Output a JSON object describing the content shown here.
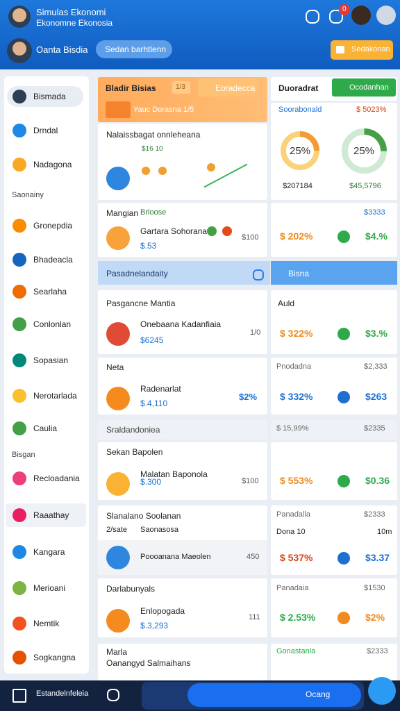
{
  "header": {
    "title": "Simulas Ekonomi",
    "subtitle": "Ekonomne Ekonosia",
    "badge": "0",
    "user": "Oanta Bisdia",
    "search": "Sedan barhtlenn",
    "action": "Sedakonan"
  },
  "sidebar": [
    "Bismada",
    "Drndal",
    "Nadagona",
    "Saonainy",
    "Gronepdia",
    "Bhadeacla",
    "Searlaha",
    "Conlonlan",
    "Sopasian",
    "Nerotarlada",
    "Caulia",
    "Bisgan",
    "Recloadania",
    "Raaathay",
    "Kangara",
    "Merioani",
    "Nemtik",
    "Sogkangna"
  ],
  "left": [
    {
      "title": "Bladir Bisias",
      "badge": "1/3",
      "button": "Eoradecca",
      "sub": "Yauc Dorasna 1/5"
    },
    {
      "title": "Nalaissbagat onnleheana",
      "sub": "$16 10"
    },
    {
      "title": "Mangian",
      "tag": "Brloose",
      "name": "Gartara Sohorana",
      "amount": "$.53",
      "value": "$100"
    },
    {
      "title": "Pasadnelandaity"
    },
    {
      "title": "Pasgancne Mantia",
      "name": "Onebaana Kadanfiaia",
      "amount": "$6245",
      "value": "1/0"
    },
    {
      "title": "Neta",
      "name": "Radenarlat",
      "amount": "$.4,110",
      "value": "$2%"
    },
    {
      "title": "Sraldandoniea"
    },
    {
      "title": "Sekan Bapolen",
      "name": "Malatan Baponola",
      "amount": "$.300",
      "value": "$100"
    },
    {
      "title": "Slanalano Soolanan",
      "tag": "2/sate",
      "sub": "Saonasosa",
      "name": "Poooanana Maeolen",
      "value": "450"
    },
    {
      "title": "Darlabunyals",
      "name": "Enlopogada",
      "amount": "$.3,293",
      "value": "111"
    },
    {
      "title": "Marla",
      "name": "Oanangyd Salmaihans"
    }
  ],
  "right": [
    {
      "title": "Duoradrat",
      "button": "Ocodanhan"
    },
    {
      "title": "Soorabonald",
      "value": "$ 5023%",
      "left": "$207184",
      "right": "$45,5796"
    },
    {
      "title": "$3333",
      "left": "$ 202%",
      "right": "$4.%"
    },
    {
      "title": "Bisna"
    },
    {
      "title": "Auld",
      "left": "$ 322%",
      "right": "$3.%"
    },
    {
      "title": "Pnodadna",
      "value": "$2,333",
      "left": "$ 332%",
      "right": "$263"
    },
    {
      "title": "$ 15,99%",
      "value": "$2335"
    },
    {
      "left": "$ 553%",
      "right": "$0.36"
    },
    {
      "title": "Panadalla",
      "value": "$2333",
      "sub": "Dona 10",
      "tag": "10m",
      "left": "$ 537%",
      "right": "$3.37"
    },
    {
      "title": "Panadaia",
      "value": "$1530",
      "left": "$ 2.53%",
      "right": "$2%"
    },
    {
      "title": "Gonastanla",
      "value": "$2333"
    }
  ],
  "donuts": [
    {
      "value": 25,
      "label": "25%"
    },
    {
      "value": 25,
      "label": "25%"
    }
  ],
  "bottom": {
    "label": "Estandelnfeleia",
    "button": "Ocang"
  }
}
